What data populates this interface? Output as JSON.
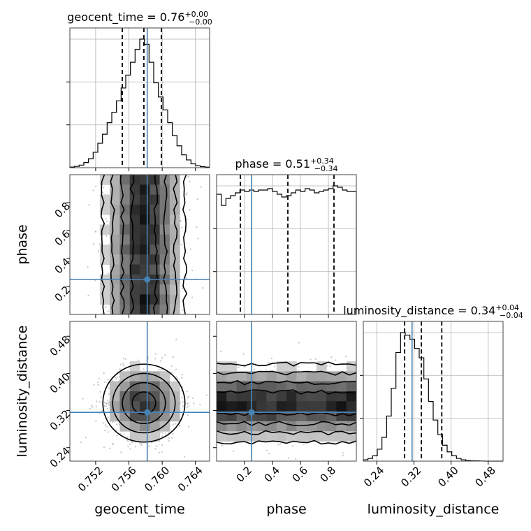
{
  "chart_data": {
    "type": "corner",
    "parameters": [
      "geocent_time",
      "phase",
      "luminosity_distance"
    ],
    "titles": [
      {
        "name": "geocent_time",
        "value": "0.76",
        "plus": "+0.00",
        "minus": "−0.00"
      },
      {
        "name": "phase",
        "value": "0.51",
        "plus": "+0.34",
        "minus": "−0.34"
      },
      {
        "name": "luminosity_distance",
        "value": "0.34",
        "plus": "+0.04",
        "minus": "−0.04"
      }
    ],
    "axes": {
      "geocent_time": {
        "range": [
          0.7489,
          0.7657
        ],
        "ticks": [
          0.752,
          0.756,
          0.76,
          0.764
        ],
        "tick_labels": [
          "0.752",
          "0.756",
          "0.760",
          "0.764"
        ]
      },
      "phase": {
        "range": [
          0.0,
          1.0
        ],
        "ticks": [
          0.2,
          0.4,
          0.6,
          0.8
        ],
        "tick_labels": [
          "0.2",
          "0.4",
          "0.6",
          "0.8"
        ]
      },
      "luminosity_distance": {
        "range": [
          0.211,
          0.512
        ],
        "ticks": [
          0.24,
          0.32,
          0.4,
          0.48
        ],
        "tick_labels": [
          "0.24",
          "0.32",
          "0.40",
          "0.48"
        ]
      }
    },
    "truths": {
      "geocent_time": 0.7582,
      "phase": 0.25,
      "luminosity_distance": 0.316
    },
    "quantiles": {
      "geocent_time": [
        0.7552,
        0.7578,
        0.7599
      ],
      "phase": [
        0.17,
        0.51,
        0.84
      ],
      "luminosity_distance": [
        0.3,
        0.336,
        0.38
      ]
    },
    "histograms": {
      "geocent_time": [
        0.005,
        0.01,
        0.02,
        0.04,
        0.07,
        0.12,
        0.19,
        0.26,
        0.35,
        0.43,
        0.52,
        0.62,
        0.72,
        0.82,
        0.92,
        1.0,
        0.96,
        0.82,
        0.66,
        0.55,
        0.45,
        0.35,
        0.25,
        0.17,
        0.1,
        0.06,
        0.03,
        0.015,
        0.008,
        0.004
      ],
      "phase": [
        0.86,
        0.78,
        0.83,
        0.85,
        0.87,
        0.89,
        0.88,
        0.89,
        0.88,
        0.89,
        0.89,
        0.9,
        0.88,
        0.86,
        0.84,
        0.85,
        0.87,
        0.89,
        0.88,
        0.9,
        0.89,
        0.87,
        0.88,
        0.89,
        0.9,
        0.92,
        0.91,
        0.89,
        0.88,
        0.88
      ],
      "luminosity_distance": [
        0.01,
        0.02,
        0.04,
        0.09,
        0.18,
        0.34,
        0.55,
        0.82,
        0.97,
        0.95,
        0.92,
        0.85,
        0.78,
        0.62,
        0.45,
        0.31,
        0.2,
        0.12,
        0.07,
        0.04,
        0.02,
        0.01,
        0.005,
        0.003,
        0.002,
        0.001,
        0.0,
        0.0,
        0.0,
        0.0
      ]
    },
    "grid": true
  }
}
